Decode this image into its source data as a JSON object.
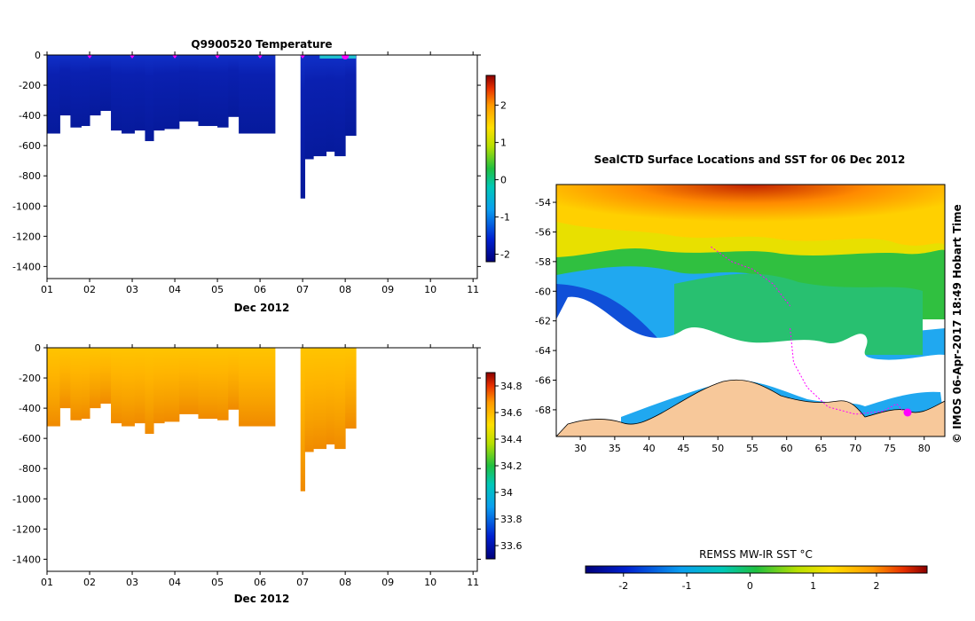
{
  "chart_data": [
    {
      "type": "heatmap",
      "title": "Q9900520  Temperature",
      "xlabel": "Dec 2012",
      "ylabel": "",
      "x_ticks": [
        "01",
        "02",
        "03",
        "04",
        "05",
        "06",
        "07",
        "08",
        "09",
        "10",
        "11"
      ],
      "y_ticks": [
        "0",
        "-200",
        "-400",
        "-600",
        "-800",
        "-1000",
        "-1200",
        "-1400"
      ],
      "xlim": [
        1,
        11.1
      ],
      "ylim": [
        -1480,
        0
      ],
      "colorbar": {
        "ticks": [
          "-2",
          "-1",
          "0",
          "1",
          "2"
        ],
        "min": -2.2,
        "max": 2.8
      },
      "profiles": [
        {
          "x0": 1.0,
          "x1": 1.3,
          "depth": -520
        },
        {
          "x0": 1.3,
          "x1": 1.55,
          "depth": -400
        },
        {
          "x0": 1.55,
          "x1": 1.8,
          "depth": -480
        },
        {
          "x0": 1.8,
          "x1": 2.0,
          "depth": -470
        },
        {
          "x0": 2.0,
          "x1": 2.25,
          "depth": -400
        },
        {
          "x0": 2.25,
          "x1": 2.5,
          "depth": -370
        },
        {
          "x0": 2.5,
          "x1": 2.75,
          "depth": -500
        },
        {
          "x0": 2.75,
          "x1": 3.05,
          "depth": -520
        },
        {
          "x0": 3.05,
          "x1": 3.3,
          "depth": -500
        },
        {
          "x0": 3.3,
          "x1": 3.5,
          "depth": -570
        },
        {
          "x0": 3.5,
          "x1": 3.75,
          "depth": -500
        },
        {
          "x0": 3.75,
          "x1": 4.1,
          "depth": -490
        },
        {
          "x0": 4.1,
          "x1": 4.55,
          "depth": -440
        },
        {
          "x0": 4.55,
          "x1": 4.75,
          "depth": -470
        },
        {
          "x0": 4.75,
          "x1": 5.0,
          "depth": -470
        },
        {
          "x0": 5.0,
          "x1": 5.25,
          "depth": -480
        },
        {
          "x0": 5.25,
          "x1": 5.5,
          "depth": -410
        },
        {
          "x0": 5.5,
          "x1": 6.35,
          "depth": -520
        },
        {
          "x0": 6.95,
          "x1": 7.05,
          "depth": -950
        },
        {
          "x0": 7.05,
          "x1": 7.25,
          "depth": -690
        },
        {
          "x0": 7.25,
          "x1": 7.55,
          "depth": -670
        },
        {
          "x0": 7.55,
          "x1": 7.75,
          "depth": -640
        },
        {
          "x0": 7.75,
          "x1": 8.0,
          "depth": -670
        },
        {
          "x0": 8.0,
          "x1": 8.25,
          "depth": -535
        }
      ],
      "markers_x": [
        2.0,
        3.0,
        4.0,
        5.0,
        6.0,
        7.0,
        8.0
      ]
    },
    {
      "type": "heatmap",
      "title": "",
      "xlabel": "Dec 2012",
      "ylabel": "",
      "x_ticks": [
        "01",
        "02",
        "03",
        "04",
        "05",
        "06",
        "07",
        "08",
        "09",
        "10",
        "11"
      ],
      "y_ticks": [
        "0",
        "-200",
        "-400",
        "-600",
        "-800",
        "-1000",
        "-1200",
        "-1400"
      ],
      "xlim": [
        1,
        11.1
      ],
      "ylim": [
        -1480,
        0
      ],
      "colorbar": {
        "ticks": [
          "33.6",
          "33.8",
          "34",
          "34.2",
          "34.4",
          "34.6",
          "34.8"
        ],
        "min": 33.5,
        "max": 34.9
      }
    },
    {
      "type": "heatmap",
      "title": "SealCTD Surface Locations and SST for 06 Dec 2012",
      "xlabel": "",
      "ylabel": "",
      "x_ticks": [
        "30",
        "35",
        "40",
        "45",
        "50",
        "55",
        "60",
        "65",
        "70",
        "75",
        "80"
      ],
      "y_ticks": [
        "-54",
        "-56",
        "-58",
        "-60",
        "-62",
        "-64",
        "-66",
        "-68"
      ],
      "xlim": [
        26.5,
        83
      ],
      "ylim": [
        -69.8,
        -52.8
      ],
      "side_label": "© IMOS 06-Apr-2017 18:49 Hobart Time",
      "colorbar": {
        "label": "REMSS MW-IR SST °C",
        "ticks": [
          "-2",
          "-1",
          "0",
          "1",
          "2"
        ],
        "min": -2.6,
        "max": 2.8
      }
    }
  ]
}
